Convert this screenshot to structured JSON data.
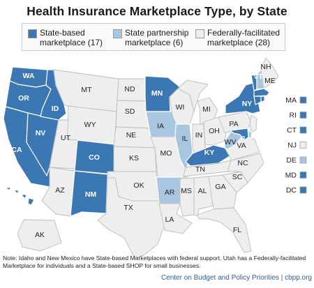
{
  "title": "Health Insurance Marketplace Type, by State",
  "legend": [
    {
      "key": "sbm",
      "line1": "State-based",
      "line2": "marketplace (17)",
      "color": "#3b77b2"
    },
    {
      "key": "spm",
      "line1": "State partnership",
      "line2": "marketplace (6)",
      "color": "#a9c6e1"
    },
    {
      "key": "ffm",
      "line1": "Federally-facilitated",
      "line2": "marketplace (28)",
      "color": "#eeeeee"
    }
  ],
  "states": {
    "WA": "sbm",
    "OR": "sbm",
    "CA": "sbm",
    "NV": "sbm",
    "ID": "sbm",
    "CO": "sbm",
    "NM": "sbm",
    "MN": "sbm",
    "KY": "sbm",
    "NY": "sbm",
    "VT": "sbm",
    "HI": "sbm",
    "MA": "sbm",
    "RI": "sbm",
    "CT": "sbm",
    "MD": "sbm",
    "DC": "sbm",
    "IA": "spm",
    "IL": "spm",
    "AR": "spm",
    "WV": "spm",
    "NH": "spm",
    "DE": "spm",
    "MT": "ffm",
    "WY": "ffm",
    "UT": "ffm",
    "AZ": "ffm",
    "ND": "ffm",
    "SD": "ffm",
    "NE": "ffm",
    "KS": "ffm",
    "OK": "ffm",
    "TX": "ffm",
    "MO": "ffm",
    "LA": "ffm",
    "WI": "ffm",
    "MI": "ffm",
    "IN": "ffm",
    "OH": "ffm",
    "TN": "ffm",
    "MS": "ffm",
    "AL": "ffm",
    "GA": "ffm",
    "FL": "ffm",
    "SC": "ffm",
    "NC": "ffm",
    "VA": "ffm",
    "PA": "ffm",
    "NJ": "ffm",
    "ME": "ffm",
    "AK": "ffm"
  },
  "small_states": [
    {
      "abbr": "MA",
      "status": "sbm"
    },
    {
      "abbr": "RI",
      "status": "sbm"
    },
    {
      "abbr": "CT",
      "status": "sbm"
    },
    {
      "abbr": "NJ",
      "status": "ffm"
    },
    {
      "abbr": "DE",
      "status": "spm"
    },
    {
      "abbr": "MD",
      "status": "sbm"
    },
    {
      "abbr": "DC",
      "status": "sbm"
    }
  ],
  "note": "Note: Idaho and New Mexico have State-based Marketplaces with federal support.  Utah has a Federally-facilitated Marketplace for individuals and a State-based SHOP for small businesses.",
  "source": "Center on Budget and Policy Priorities | cbpp.org"
}
